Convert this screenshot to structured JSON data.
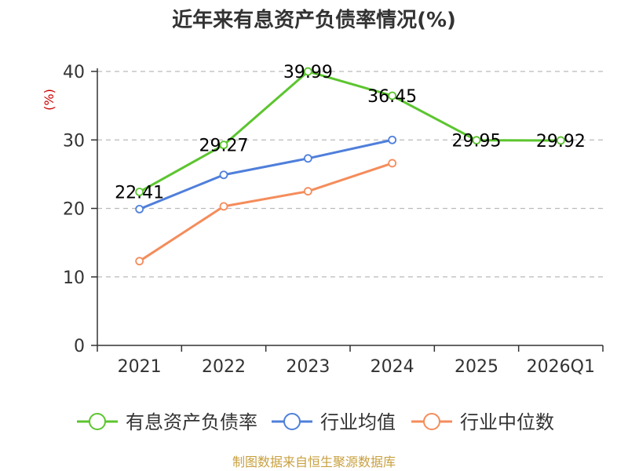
{
  "chart_data": {
    "type": "line",
    "title": "近年来有息资产负债率情况(%)",
    "ylabel": "(%)",
    "categories": [
      "2021",
      "2022",
      "2023",
      "2024",
      "2025",
      "2026Q1"
    ],
    "ylim": [
      0,
      40
    ],
    "yticks": [
      0,
      10,
      20,
      30,
      40
    ],
    "grid": true,
    "legend_position": "bottom",
    "series": [
      {
        "name": "有息资产负债率",
        "color": "#5cc52f",
        "values": [
          22.41,
          29.27,
          39.99,
          36.45,
          29.95,
          29.92
        ],
        "labels": [
          "22.41",
          "29.27",
          "39.99",
          "36.45",
          "29.95",
          "29.92"
        ]
      },
      {
        "name": "行业均值",
        "color": "#4f7fdb",
        "values": [
          19.9,
          24.9,
          27.3,
          30.0,
          null,
          null
        ]
      },
      {
        "name": "行业中位数",
        "color": "#f58c5b",
        "values": [
          12.3,
          20.3,
          22.5,
          26.6,
          null,
          null
        ]
      }
    ]
  },
  "source": "制图数据来自恒生聚源数据库"
}
